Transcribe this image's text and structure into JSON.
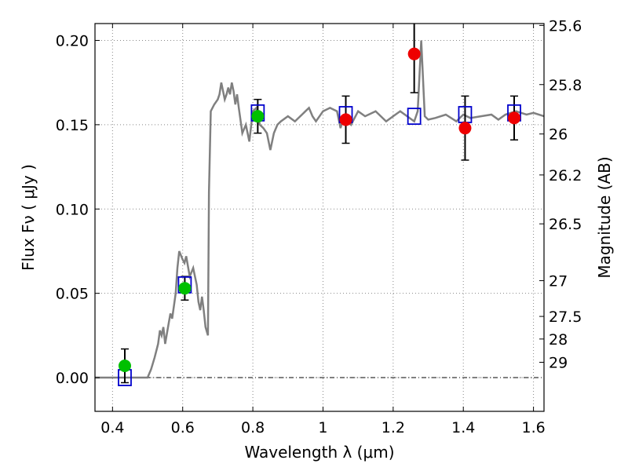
{
  "chart_data": {
    "type": "scatter",
    "xlabel": "Wavelength  λ (μm)",
    "ylabel": "Flux  Fν  ( μJy )",
    "y2label": "Magnitude (AB)",
    "xlim": [
      0.35,
      1.63
    ],
    "ylim": [
      -0.02,
      0.21
    ],
    "grid": true,
    "x_ticks": [
      {
        "value": 0.4,
        "label": "0.4"
      },
      {
        "value": 0.6,
        "label": "0.6"
      },
      {
        "value": 0.8,
        "label": "0.8"
      },
      {
        "value": 1.0,
        "label": "1"
      },
      {
        "value": 1.2,
        "label": "1.2"
      },
      {
        "value": 1.4,
        "label": "1.4"
      },
      {
        "value": 1.6,
        "label": "1.6"
      }
    ],
    "y_ticks": [
      {
        "value": 0.0,
        "label": "0.00"
      },
      {
        "value": 0.05,
        "label": "0.05"
      },
      {
        "value": 0.1,
        "label": "0.10"
      },
      {
        "value": 0.15,
        "label": "0.15"
      },
      {
        "value": 0.2,
        "label": "0.20"
      }
    ],
    "y2_ticks": [
      {
        "flux": 0.2089,
        "label": "25.6"
      },
      {
        "flux": 0.1738,
        "label": "25.8"
      },
      {
        "flux": 0.1445,
        "label": "26"
      },
      {
        "flux": 0.1202,
        "label": "26.2"
      },
      {
        "flux": 0.0912,
        "label": "26.5"
      },
      {
        "flux": 0.0575,
        "label": "27"
      },
      {
        "flux": 0.0363,
        "label": "27.5"
      },
      {
        "flux": 0.0229,
        "label": "28"
      },
      {
        "flux": 0.0091,
        "label": "29"
      }
    ],
    "colors": {
      "model": "#808080",
      "model_photometry": "#0000cc",
      "detections_optical": "#00c000",
      "detections_nir": "#ee0000",
      "error_bars": "#000000",
      "grid": "#888888"
    },
    "series": [
      {
        "kind": "model_spectrum",
        "x": [
          0.35,
          0.5,
          0.51,
          0.52,
          0.53,
          0.535,
          0.54,
          0.545,
          0.55,
          0.56,
          0.565,
          0.57,
          0.58,
          0.585,
          0.59,
          0.6,
          0.605,
          0.61,
          0.62,
          0.63,
          0.64,
          0.645,
          0.65,
          0.655,
          0.66,
          0.665,
          0.672,
          0.675,
          0.68,
          0.69,
          0.7,
          0.705,
          0.71,
          0.715,
          0.72,
          0.725,
          0.73,
          0.735,
          0.74,
          0.745,
          0.75,
          0.755,
          0.76,
          0.77,
          0.78,
          0.79,
          0.8,
          0.81,
          0.82,
          0.83,
          0.84,
          0.85,
          0.86,
          0.87,
          0.88,
          0.9,
          0.92,
          0.94,
          0.95,
          0.96,
          0.97,
          0.98,
          1.0,
          1.02,
          1.04,
          1.05,
          1.06,
          1.08,
          1.1,
          1.12,
          1.15,
          1.18,
          1.2,
          1.22,
          1.24,
          1.26,
          1.27,
          1.28,
          1.29,
          1.3,
          1.32,
          1.35,
          1.38,
          1.4,
          1.42,
          1.45,
          1.48,
          1.5,
          1.52,
          1.55,
          1.58,
          1.6,
          1.63
        ],
        "y": [
          0.0,
          0.0,
          0.005,
          0.012,
          0.02,
          0.028,
          0.025,
          0.03,
          0.02,
          0.032,
          0.038,
          0.035,
          0.05,
          0.065,
          0.075,
          0.07,
          0.068,
          0.072,
          0.06,
          0.065,
          0.055,
          0.045,
          0.04,
          0.048,
          0.04,
          0.03,
          0.025,
          0.11,
          0.158,
          0.162,
          0.165,
          0.168,
          0.175,
          0.17,
          0.165,
          0.168,
          0.172,
          0.168,
          0.175,
          0.17,
          0.162,
          0.168,
          0.16,
          0.145,
          0.15,
          0.14,
          0.158,
          0.16,
          0.15,
          0.148,
          0.145,
          0.135,
          0.145,
          0.15,
          0.152,
          0.155,
          0.152,
          0.156,
          0.158,
          0.16,
          0.155,
          0.152,
          0.158,
          0.16,
          0.158,
          0.148,
          0.155,
          0.15,
          0.158,
          0.155,
          0.158,
          0.152,
          0.155,
          0.158,
          0.155,
          0.152,
          0.158,
          0.2,
          0.155,
          0.153,
          0.154,
          0.156,
          0.152,
          0.156,
          0.154,
          0.155,
          0.156,
          0.153,
          0.156,
          0.158,
          0.156,
          0.157,
          0.155
        ]
      },
      {
        "kind": "model_photometry",
        "x": [
          0.435,
          0.606,
          0.814,
          1.065,
          1.26,
          1.405,
          1.545
        ],
        "y": [
          0.0,
          0.055,
          0.157,
          0.156,
          0.155,
          0.156,
          0.157
        ]
      },
      {
        "kind": "detections_optical",
        "x": [
          0.435,
          0.606,
          0.814
        ],
        "y": [
          0.007,
          0.053,
          0.155
        ],
        "yerr": [
          0.01,
          0.007,
          0.01
        ]
      },
      {
        "kind": "detections_nir",
        "x": [
          1.065,
          1.26,
          1.405,
          1.545
        ],
        "y": [
          0.153,
          0.192,
          0.148,
          0.154
        ],
        "yerr": [
          0.014,
          0.023,
          0.019,
          0.013
        ]
      }
    ]
  }
}
